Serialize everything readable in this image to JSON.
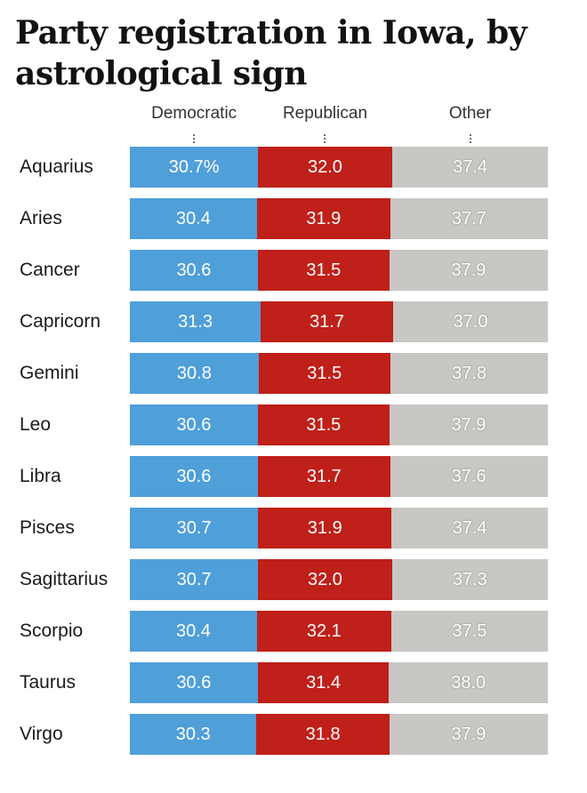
{
  "chart_data": {
    "type": "bar",
    "orientation": "horizontal",
    "stacked": true,
    "title": "Party registration in Iowa, by astrological sign",
    "value_suffix_first": "%",
    "xlim": [
      0,
      100
    ],
    "categories": [
      "Aquarius",
      "Aries",
      "Cancer",
      "Capricorn",
      "Gemini",
      "Leo",
      "Libra",
      "Pisces",
      "Sagittarius",
      "Scorpio",
      "Taurus",
      "Virgo"
    ],
    "series": [
      {
        "name": "Democratic",
        "color": "#4f9fd9",
        "values": [
          30.7,
          30.4,
          30.6,
          31.3,
          30.8,
          30.6,
          30.6,
          30.7,
          30.7,
          30.4,
          30.6,
          30.3
        ]
      },
      {
        "name": "Republican",
        "color": "#bf2019",
        "values": [
          32.0,
          31.9,
          31.5,
          31.7,
          31.5,
          31.5,
          31.7,
          31.9,
          32.0,
          32.1,
          31.4,
          31.8
        ]
      },
      {
        "name": "Other",
        "color": "#c8c7c4",
        "values": [
          37.4,
          37.7,
          37.9,
          37.0,
          37.8,
          37.9,
          37.6,
          37.4,
          37.3,
          37.5,
          38.0,
          37.9
        ]
      }
    ]
  }
}
